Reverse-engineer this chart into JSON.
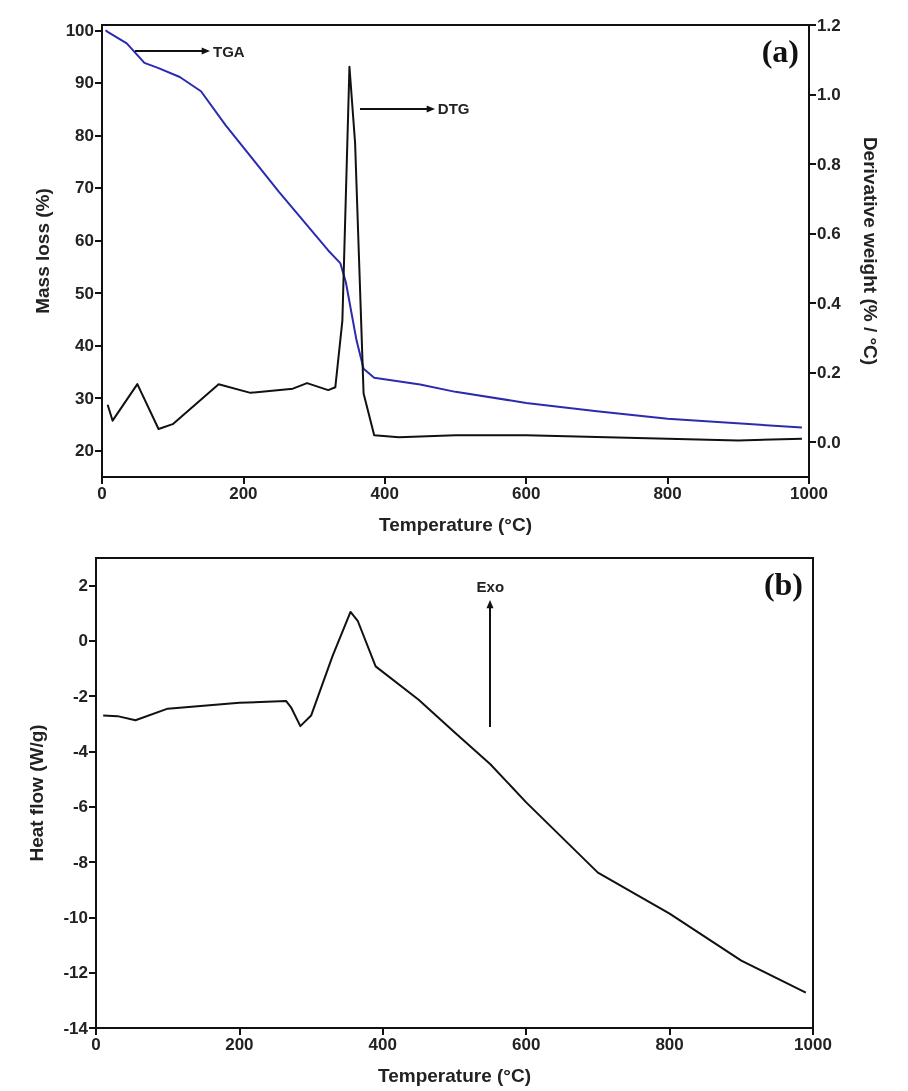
{
  "chart_data": [
    {
      "type": "line",
      "xlabel": "Temperature (°C)",
      "ylabel": "Mass loss (%)",
      "y2label": "Derivative weight (% / °C)",
      "xlim": [
        0,
        1000
      ],
      "xticks": [
        0,
        200,
        400,
        600,
        800,
        1000
      ],
      "ylim": [
        15,
        101
      ],
      "yticks": [
        20,
        30,
        40,
        50,
        60,
        70,
        80,
        90,
        100
      ],
      "y2lim": [
        -0.1,
        1.2
      ],
      "y2ticks": [
        {
          "value": 0,
          "label": "0.0"
        },
        0.2,
        0.4,
        0.6,
        0.8,
        {
          "value": 1,
          "label": "1.0"
        },
        1.2
      ],
      "grid": false,
      "marker": "none",
      "line_style": "solid",
      "annotations": [
        "(a)",
        "TGA",
        "DTG"
      ],
      "series": [
        {
          "color": "#2b2bb0",
          "x": [
            5,
            8,
            35,
            60,
            80,
            110,
            140,
            175,
            250,
            320,
            337,
            345,
            360,
            370,
            385,
            450,
            500,
            600,
            700,
            800,
            990
          ],
          "values": [
            100,
            99.7,
            97.5,
            93.8,
            92.8,
            91.1,
            88.4,
            81.9,
            69.3,
            58.1,
            55.7,
            52,
            41,
            35.6,
            33.9,
            32.6,
            31.2,
            29.1,
            27.5,
            26.1,
            24.4
          ]
        },
        {
          "color": "#111111",
          "axis": "y2",
          "x": [
            8,
            15,
            50,
            80,
            100,
            165,
            210,
            270,
            290,
            320,
            330,
            340,
            350,
            358,
            370,
            385,
            420,
            500,
            600,
            800,
            900,
            990
          ],
          "values": [
            0.108,
            0.062,
            0.167,
            0.038,
            0.052,
            0.167,
            0.142,
            0.154,
            0.17,
            0.15,
            0.158,
            0.35,
            1.08,
            0.86,
            0.14,
            0.02,
            0.014,
            0.02,
            0.02,
            0.01,
            0.005,
            0.01
          ]
        }
      ]
    },
    {
      "type": "line",
      "xlabel": "Temperature (°C)",
      "ylabel": "Heat flow (W/g)",
      "xlim": [
        0,
        1000
      ],
      "xticks": [
        0,
        200,
        400,
        600,
        800,
        1000
      ],
      "ylim": [
        -14,
        3
      ],
      "yticks": [
        -14,
        -12,
        -10,
        -8,
        -6,
        -4,
        -2,
        0,
        2
      ],
      "grid": false,
      "marker": "none",
      "line_style": "solid",
      "annotations": [
        "(b)",
        "Exo"
      ],
      "series": [
        {
          "color": "#111111",
          "x": [
            10,
            30,
            55,
            100,
            200,
            265,
            272,
            285,
            300,
            330,
            355,
            365,
            390,
            450,
            500,
            550,
            600,
            700,
            800,
            900,
            990
          ],
          "values": [
            -2.7,
            -2.72,
            -2.87,
            -2.45,
            -2.24,
            -2.17,
            -2.4,
            -3.08,
            -2.7,
            -0.54,
            1.05,
            0.73,
            -0.92,
            -2.13,
            -3.3,
            -4.46,
            -5.84,
            -8.38,
            -9.86,
            -11.56,
            -12.72
          ]
        }
      ]
    }
  ]
}
